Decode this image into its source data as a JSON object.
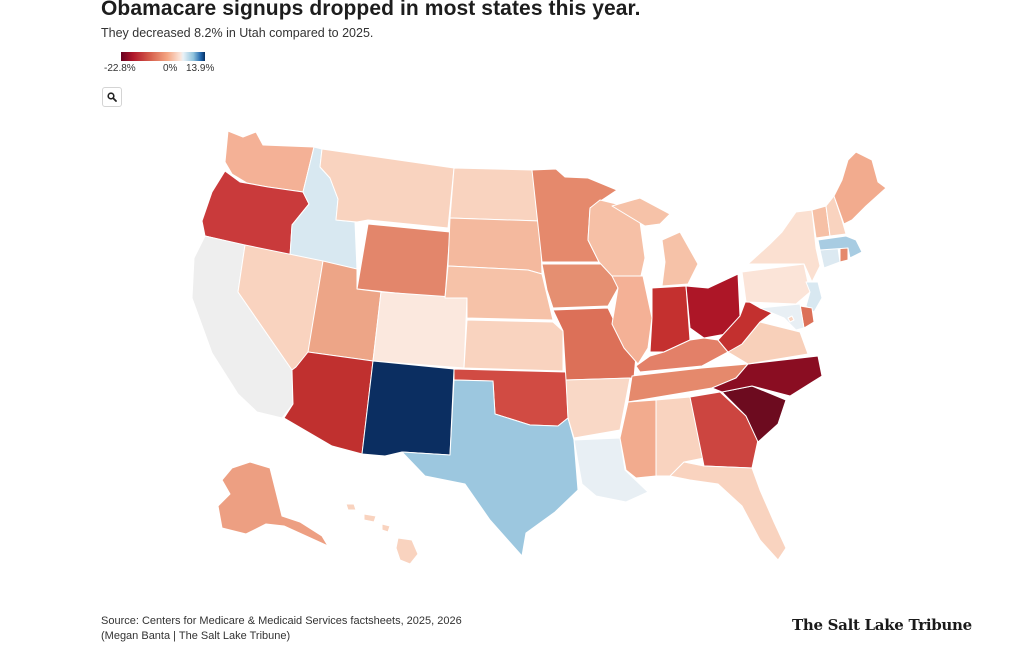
{
  "header": {
    "title": "Obamacare signups dropped in most states this year.",
    "subtitle": "They decreased 8.2% in Utah compared to 2025."
  },
  "legend": {
    "min_label": "-22.8%",
    "mid_label": "0%",
    "max_label": "13.9%",
    "color_scale": [
      "#67001f",
      "#b2182b",
      "#d6604d",
      "#f4a582",
      "#fbe6dc",
      "#eaf2f7",
      "#92c5de",
      "#2166ac",
      "#053061"
    ]
  },
  "zoom_button": {
    "icon": "magnifier-icon"
  },
  "footer": {
    "source": "Source: Centers for Medicare & Medicaid Services factsheets, 2025, 2026",
    "credit": "(Megan Banta | The Salt Lake Tribune)",
    "logo_text": "The Salt Lake Tribune"
  },
  "map_fills": {
    "WA": "#f4b196",
    "OR": "#c93a3b",
    "CA": "#eeeeee",
    "NV": "#f9d3bf",
    "ID": "#d8e8f1",
    "MT": "#f9d3bf",
    "WY": "#e3866b",
    "UT": "#eda587",
    "AZ": "#c0302f",
    "CO": "#fbe8de",
    "NM": "#0b2e61",
    "ND": "#f9d3bf",
    "SD": "#f4b99e",
    "NE": "#f6c2a8",
    "KS": "#f9d3bf",
    "OK": "#d14b43",
    "TX": "#9cc7df",
    "MN": "#e5896c",
    "IA": "#e58f71",
    "MO": "#dc7058",
    "AR": "#f9d8c6",
    "LA": "#e8eff4",
    "WI": "#f6c0a6",
    "IL": "#f4b196",
    "MI": "#f6c2a8",
    "IN": "#c4302f",
    "OH": "#ad1627",
    "KY": "#e38068",
    "TN": "#e5896c",
    "MS": "#f2ab8e",
    "AL": "#f9d3bf",
    "GA": "#cc4540",
    "FL": "#f9d3bf",
    "SC": "#6d0b1f",
    "NC": "#8a0d22",
    "VA": "#f8d0ba",
    "WV": "#c3302f",
    "PA": "#fbe4d8",
    "NY": "#fbe0d1",
    "ME": "#f2ab8e",
    "VT": "#f6c0a6",
    "NH": "#f9d3bf",
    "MA": "#a8cce2",
    "RI": "#e5896c",
    "CT": "#dce9f1",
    "NJ": "#d8e8f1",
    "DE": "#dc7058",
    "MD": "#e8eff4",
    "DC": "#f9d3bf",
    "AK": "#ed9f82",
    "HI": "#f9d3bf"
  }
}
